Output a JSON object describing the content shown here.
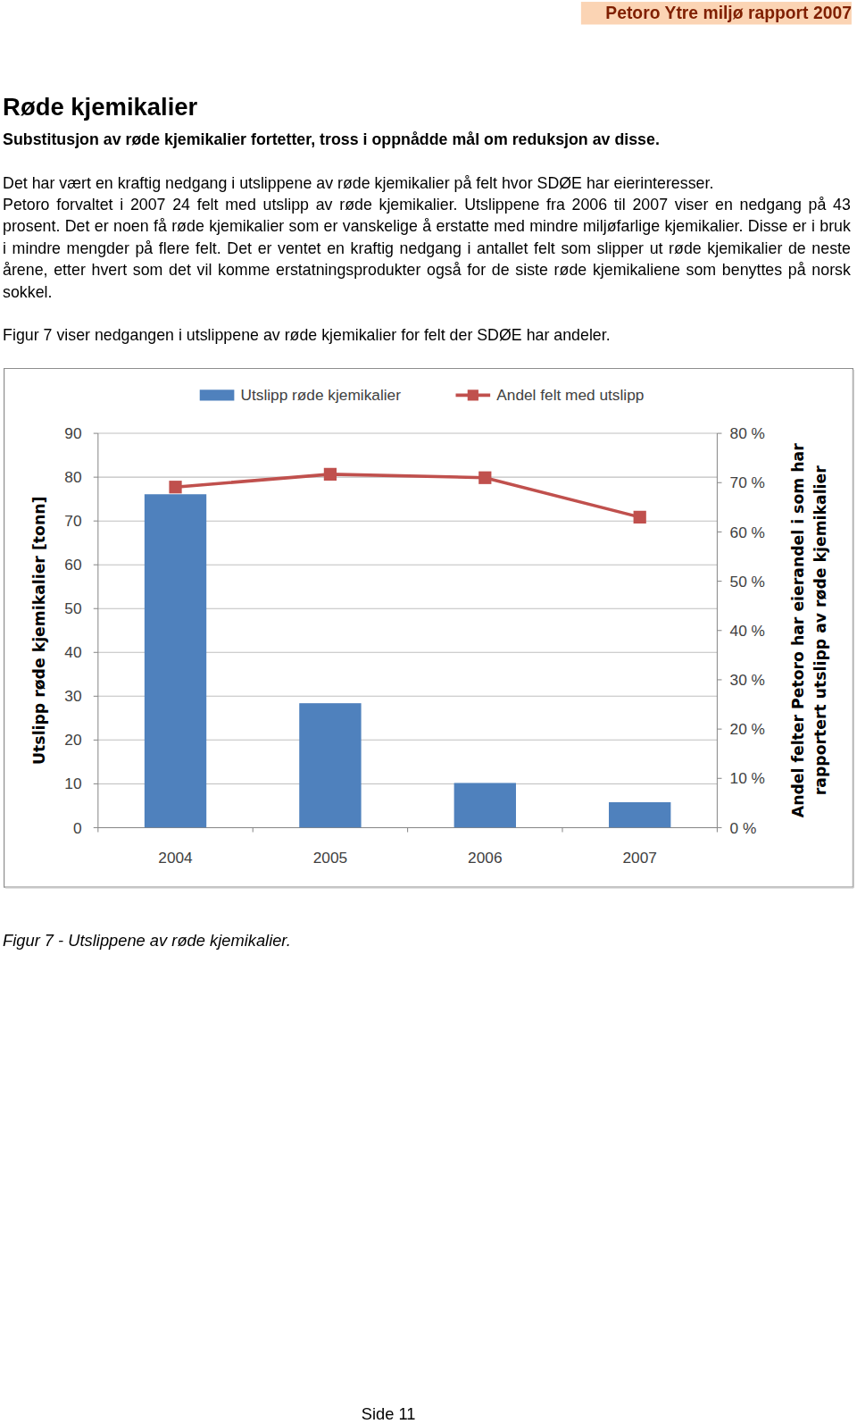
{
  "header": "Petoro Ytre miljø rapport 2007",
  "title": "Røde kjemikalier",
  "subtitle": "Substitusjon av røde kjemikalier fortetter, tross i oppnådde mål om reduksjon av disse.",
  "paragraphs": [
    [
      "Det har vært en kraftig nedgang i utslippene av røde kjemikalier på felt hvor SDØE har eierinteresser.",
      "Petoro forvaltet  i 2007 24 felt med utslipp av røde kjemikalier. Utslippene fra 2006 til 2007 viser en nedgang på 43 prosent. Det er noen få røde kjemikalier som er vanskelige å erstatte med mindre miljøfarlige kjemikalier. Disse er i bruk i mindre mengder på flere felt. Det er ventet en kraftig nedgang i antallet felt som slipper ut røde kjemikalier de neste årene, etter hvert som det vil komme erstatningsprodukter også for de siste røde kjemikaliene som benyttes på norsk sokkel."
    ],
    [
      "Figur 7 viser nedgangen i utslippene av røde kjemikalier for felt der SDØE har andeler."
    ]
  ],
  "chart_data": {
    "type": "bar",
    "categories": [
      "2004",
      "2005",
      "2006",
      "2007"
    ],
    "series": [
      {
        "name": "Utslipp røde kjemikalier",
        "type": "bar",
        "color": "#4f81bd",
        "values": [
          76.1,
          28.4,
          10.2,
          5.8
        ]
      },
      {
        "name": "Andel felt med utslipp",
        "type": "line",
        "axis": "y2",
        "color": "#c0504d",
        "marker": "square",
        "line_style": "solid",
        "values": [
          69.1,
          71.7,
          71.0,
          63.0
        ]
      }
    ],
    "ylabel": "Utslipp røde kjemikalier [tonn]",
    "y2label": [
      "Andel felter Petoro har eierandel i som har",
      "rapportert utslipp av røde kjemikalier"
    ],
    "ylim": [
      0,
      90
    ],
    "yticks": [
      0,
      10,
      20,
      30,
      40,
      50,
      60,
      70,
      80,
      90
    ],
    "y2lim": [
      0,
      80
    ],
    "y2ticks": [
      {
        "value": 0,
        "label": "0 %"
      },
      {
        "value": 10,
        "label": "10 %"
      },
      {
        "value": 20,
        "label": "20 %"
      },
      {
        "value": 30,
        "label": "30 %"
      },
      {
        "value": 40,
        "label": "40 %"
      },
      {
        "value": 50,
        "label": "50 %"
      },
      {
        "value": 60,
        "label": "60 %"
      },
      {
        "value": 70,
        "label": "70 %"
      },
      {
        "value": 80,
        "label": "80 %"
      }
    ],
    "grid": true,
    "legend": "top"
  },
  "caption": "Figur 7 - Utslippene av røde kjemikalier.",
  "page_number": "Side  11"
}
